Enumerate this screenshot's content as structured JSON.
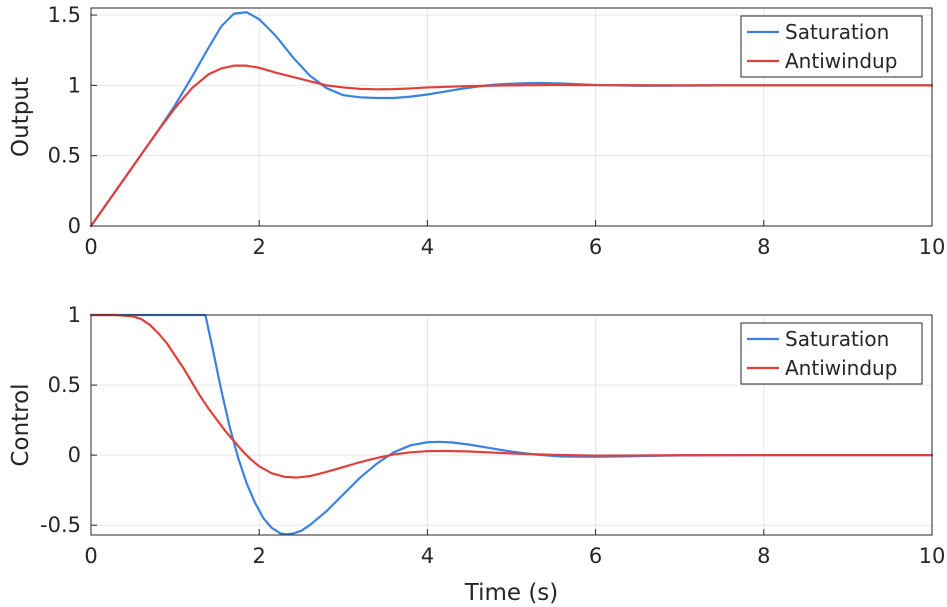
{
  "chart_data": [
    {
      "type": "line",
      "title": "",
      "xlabel": "",
      "ylabel": "Output",
      "xlim": [
        0,
        10
      ],
      "ylim": [
        0,
        1.55
      ],
      "xticks": [
        0,
        2,
        4,
        6,
        8,
        10
      ],
      "xtick_labels": [
        "0",
        "2",
        "4",
        "6",
        "8",
        "10"
      ],
      "yticks": [
        0,
        0.5,
        1,
        1.5
      ],
      "ytick_labels": [
        "0",
        "0.5",
        "1",
        "1.5"
      ],
      "grid": true,
      "legend_position": "top-right",
      "series": [
        {
          "name": "Saturation",
          "color": "#3b82e0",
          "x": [
            0,
            0.2,
            0.4,
            0.6,
            0.8,
            1.0,
            1.2,
            1.4,
            1.55,
            1.7,
            1.85,
            2.0,
            2.2,
            2.4,
            2.6,
            2.8,
            3.0,
            3.2,
            3.4,
            3.6,
            3.8,
            4.0,
            4.2,
            4.4,
            4.6,
            4.8,
            5.0,
            5.2,
            5.35,
            5.6,
            5.8,
            6.0,
            6.5,
            7.0,
            7.5,
            8.0,
            9.0,
            10.0
          ],
          "y": [
            0,
            0.17,
            0.34,
            0.51,
            0.68,
            0.86,
            1.06,
            1.27,
            1.42,
            1.51,
            1.52,
            1.47,
            1.35,
            1.2,
            1.07,
            0.98,
            0.93,
            0.915,
            0.91,
            0.91,
            0.92,
            0.935,
            0.955,
            0.975,
            0.992,
            1.005,
            1.012,
            1.016,
            1.017,
            1.013,
            1.008,
            1.003,
            0.997,
            0.998,
            1.0,
            1.0,
            1.0,
            1.0
          ]
        },
        {
          "name": "Antiwindup",
          "color": "#e0403a",
          "x": [
            0,
            0.2,
            0.4,
            0.6,
            0.8,
            1.0,
            1.2,
            1.4,
            1.55,
            1.7,
            1.85,
            2.0,
            2.2,
            2.4,
            2.6,
            2.8,
            3.0,
            3.2,
            3.4,
            3.6,
            3.8,
            4.0,
            4.5,
            5.0,
            5.5,
            6.0,
            7.0,
            8.0,
            9.0,
            10.0
          ],
          "y": [
            0,
            0.17,
            0.34,
            0.51,
            0.68,
            0.84,
            0.98,
            1.08,
            1.12,
            1.14,
            1.14,
            1.125,
            1.09,
            1.06,
            1.03,
            1.0,
            0.985,
            0.975,
            0.972,
            0.973,
            0.978,
            0.985,
            0.995,
            1.0,
            1.002,
            1.001,
            1.0,
            1.0,
            1.0,
            1.0
          ]
        }
      ]
    },
    {
      "type": "line",
      "title": "",
      "xlabel": "Time (s)",
      "ylabel": "Control",
      "xlim": [
        0,
        10
      ],
      "ylim": [
        -0.57,
        1.0
      ],
      "xticks": [
        0,
        2,
        4,
        6,
        8,
        10
      ],
      "xtick_labels": [
        "0",
        "2",
        "4",
        "6",
        "8",
        "10"
      ],
      "yticks": [
        -0.5,
        0,
        0.5,
        1
      ],
      "ytick_labels": [
        "-0.5",
        "0",
        "0.5",
        "1"
      ],
      "grid": true,
      "legend_position": "top-right",
      "series": [
        {
          "name": "Saturation",
          "color": "#3b82e0",
          "x": [
            0,
            0.5,
            1.0,
            1.36,
            1.45,
            1.55,
            1.65,
            1.75,
            1.85,
            1.95,
            2.05,
            2.15,
            2.25,
            2.32,
            2.4,
            2.5,
            2.6,
            2.8,
            3.0,
            3.2,
            3.4,
            3.6,
            3.8,
            4.0,
            4.15,
            4.3,
            4.5,
            4.7,
            5.0,
            5.3,
            5.6,
            6.0,
            6.4,
            7.0,
            8.0,
            9.0,
            10.0
          ],
          "y": [
            1.0,
            1.0,
            1.0,
            1.0,
            0.75,
            0.46,
            0.2,
            -0.02,
            -0.2,
            -0.34,
            -0.45,
            -0.52,
            -0.558,
            -0.565,
            -0.56,
            -0.54,
            -0.5,
            -0.4,
            -0.28,
            -0.16,
            -0.06,
            0.02,
            0.07,
            0.092,
            0.095,
            0.09,
            0.075,
            0.055,
            0.025,
            0.003,
            -0.01,
            -0.012,
            -0.008,
            -0.002,
            0.0,
            0.0,
            0.0
          ]
        },
        {
          "name": "Antiwindup",
          "color": "#e0403a",
          "x": [
            0,
            0.3,
            0.5,
            0.6,
            0.7,
            0.8,
            0.9,
            1.0,
            1.1,
            1.2,
            1.3,
            1.4,
            1.5,
            1.6,
            1.7,
            1.8,
            1.9,
            2.0,
            2.15,
            2.3,
            2.45,
            2.6,
            2.8,
            3.0,
            3.2,
            3.4,
            3.6,
            3.8,
            4.0,
            4.2,
            4.5,
            5.0,
            5.5,
            6.0,
            7.0,
            8.0,
            9.0,
            10.0
          ],
          "y": [
            1.0,
            1.0,
            0.99,
            0.97,
            0.93,
            0.87,
            0.8,
            0.71,
            0.62,
            0.52,
            0.42,
            0.33,
            0.25,
            0.17,
            0.1,
            0.03,
            -0.03,
            -0.08,
            -0.13,
            -0.155,
            -0.16,
            -0.15,
            -0.12,
            -0.085,
            -0.05,
            -0.02,
            0.005,
            0.02,
            0.028,
            0.03,
            0.026,
            0.012,
            0.002,
            -0.003,
            -0.001,
            0.0,
            0.0,
            0.0
          ]
        }
      ]
    }
  ]
}
